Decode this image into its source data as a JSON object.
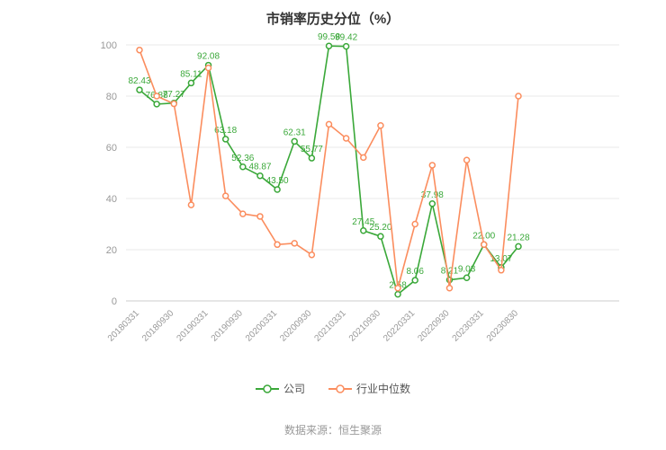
{
  "page": {
    "title": "市销率历史分位（%）",
    "source": "数据来源：恒生聚源"
  },
  "chart_data": {
    "type": "line",
    "title": "市销率历史分位（%）",
    "ylabel": "",
    "xlabel": "",
    "grid": true,
    "legend_position": "bottom",
    "y_axis": {
      "min": 0,
      "max": 100,
      "ticks": [
        0,
        20,
        40,
        60,
        80,
        100
      ]
    },
    "x_tick_labels": [
      "20180331",
      "20180930",
      "20190331",
      "20190930",
      "20200331",
      "20200930",
      "20210331",
      "20210930",
      "20220331",
      "20220930",
      "20230331",
      "20230830"
    ],
    "x_label_every": 2,
    "series": [
      {
        "name": "公司",
        "color": "#3aa839",
        "show_labels": true,
        "values": [
          82.43,
          76.88,
          77.27,
          85.11,
          92.08,
          63.18,
          52.36,
          48.87,
          43.5,
          62.31,
          55.77,
          99.58,
          99.42,
          27.45,
          25.2,
          2.58,
          8.06,
          37.98,
          8.21,
          9.03,
          22.0,
          13.07,
          21.28
        ]
      },
      {
        "name": "行业中位数",
        "color": "#fb8d5e",
        "show_labels": false,
        "values": [
          98,
          80,
          77,
          37.5,
          91,
          41,
          34,
          33,
          22,
          22.5,
          18,
          69,
          63.5,
          56,
          68.5,
          5,
          30,
          53,
          5,
          55,
          22,
          12,
          80
        ]
      }
    ]
  }
}
